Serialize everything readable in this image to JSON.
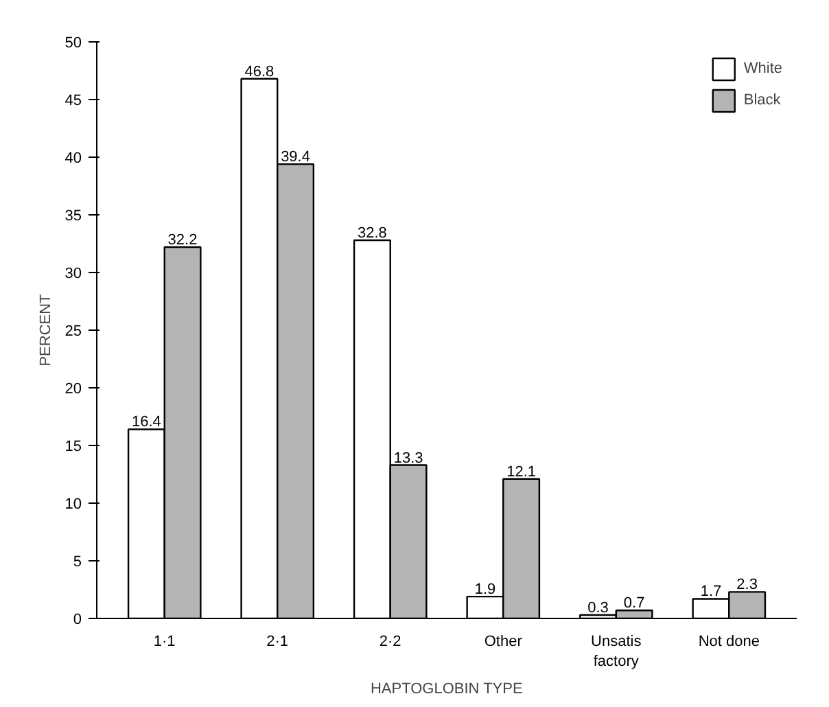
{
  "chart_data": {
    "type": "bar",
    "xlabel": "HAPTOGLOBIN TYPE",
    "ylabel": "PERCENT",
    "categories": [
      "1·1",
      "2·1",
      "2·2",
      "Other",
      "Unsatis\nfactory",
      "Not done"
    ],
    "series": [
      {
        "name": "White",
        "color": "#ffffff",
        "values": [
          16.4,
          46.8,
          32.8,
          1.9,
          0.3,
          1.7
        ]
      },
      {
        "name": "Black",
        "color": "#b4b4b4",
        "values": [
          32.2,
          39.4,
          13.3,
          12.1,
          0.7,
          2.3
        ]
      }
    ],
    "ylim": [
      0,
      50
    ],
    "yticks": [
      0,
      5,
      10,
      15,
      20,
      25,
      30,
      35,
      40,
      45,
      50
    ],
    "data_labels": true,
    "legend": "top right",
    "grid": false
  }
}
